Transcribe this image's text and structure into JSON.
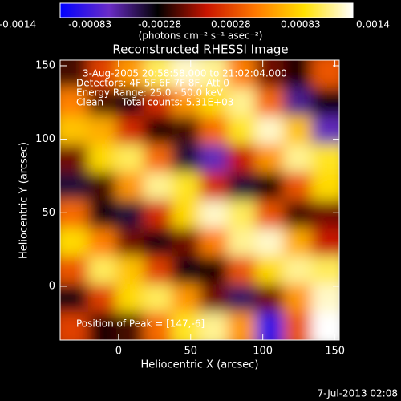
{
  "chart_data": {
    "type": "heatmap",
    "title": "Reconstructed RHESSI Image",
    "colorbar_label": "(photons cm⁻² s⁻¹ asec⁻²)",
    "colorbar_lim": [
      -0.0014,
      0.0014
    ],
    "colorbar_ticks": [
      -0.0014,
      -0.00083,
      -0.00028,
      0.00028,
      0.00083,
      0.0014
    ],
    "colors": [
      "#0000ff",
      "#6a2cc8",
      "#000000",
      "#c81400",
      "#ff7800",
      "#ffe000",
      "#ffffff"
    ],
    "x_label": "Heliocentric X (arcsec)",
    "y_label": "Heliocentric Y (arcsec)",
    "xlim": [
      -40.5,
      153
    ],
    "ylim": [
      -36.6,
      153.8
    ],
    "xticks": [
      0,
      50,
      100,
      150
    ],
    "yticks": [
      0,
      50,
      100,
      150
    ],
    "annotations": [
      "3-Aug-2005 20:58:58.000 to 21:02:04.000",
      "Detectors: 4F 5F 6F 7F 8F, Att 0",
      "Energy Range: 25.0 - 50.0 keV",
      "Clean      Total counts: 5.31E+03"
    ],
    "peak_label": "Position of Peak = [147,-6]",
    "footer": "7-Jul-2013 02:08",
    "z": [
      [
        -0.0003,
        0.0002,
        0.0006,
        0.0011,
        0.0013,
        0.0012,
        0.0005,
        -0.0002,
        -0.0004,
        0.0003
      ],
      [
        0.0005,
        -0.0003,
        -0.0005,
        0.0001,
        0.0006,
        0.0009,
        0.0012,
        0.0004,
        -0.0008,
        -0.0005
      ],
      [
        0.0008,
        0.0007,
        0.0001,
        -0.0004,
        -0.0003,
        0.0004,
        0.001,
        0.0013,
        0.0008,
        -0.0009
      ],
      [
        -0.0002,
        0.0009,
        0.0011,
        0.0004,
        -0.0006,
        -0.0009,
        0.0,
        0.0006,
        0.0012,
        0.001
      ],
      [
        -0.0006,
        -0.0003,
        0.0006,
        0.0012,
        0.001,
        0.0001,
        -0.0006,
        -0.0004,
        0.0003,
        0.0009
      ],
      [
        0.0004,
        -0.0005,
        -0.0006,
        0.0001,
        0.0009,
        0.0013,
        0.0011,
        0.0003,
        -0.0003,
        -0.0002
      ],
      [
        0.0009,
        0.0005,
        -0.0002,
        -0.0005,
        -0.0002,
        0.0005,
        0.0012,
        0.0013,
        0.0007,
        0.0
      ],
      [
        0.0003,
        0.0011,
        0.0008,
        0.0002,
        -0.0005,
        -0.0004,
        0.0003,
        0.0009,
        0.0012,
        0.0011
      ],
      [
        -0.0005,
        0.0002,
        0.0009,
        0.0011,
        0.0006,
        -0.0002,
        -0.0007,
        -0.0002,
        0.0006,
        0.0013
      ],
      [
        0.0002,
        -0.0004,
        -0.0003,
        0.0004,
        0.001,
        0.0012,
        0.0006,
        -0.0012,
        0.0003,
        0.0014
      ]
    ]
  }
}
